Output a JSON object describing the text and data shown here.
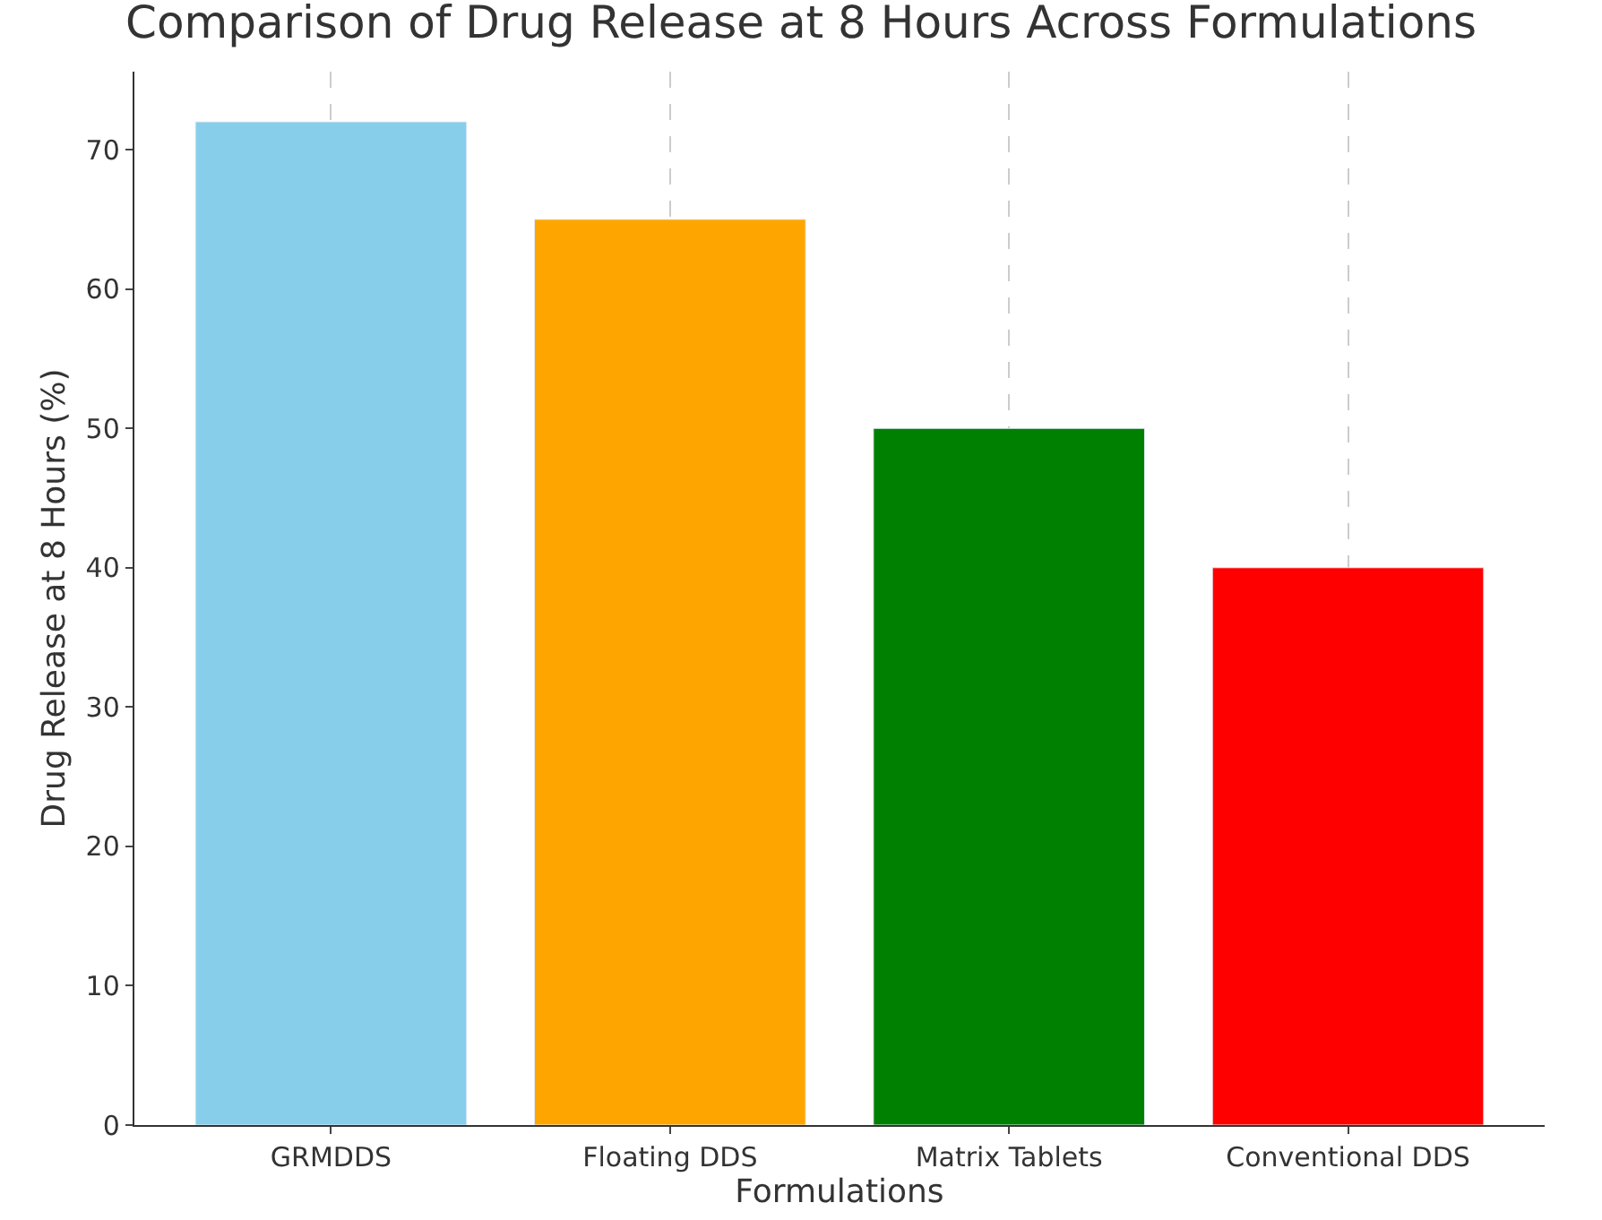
{
  "chart_data": {
    "type": "bar",
    "title": "Comparison of Drug Release at 8 Hours Across Formulations",
    "xlabel": "Formulations",
    "ylabel": "Drug Release at 8 Hours (%)",
    "categories": [
      "GRMDDS",
      "Floating DDS",
      "Matrix Tablets",
      "Conventional DDS"
    ],
    "values": [
      72,
      65,
      50,
      40
    ],
    "colors": [
      "#87ceeb",
      "#ffa500",
      "#008000",
      "#ff0000"
    ],
    "ylim": [
      0,
      75.6
    ],
    "yticks": [
      0,
      10,
      20,
      30,
      40,
      50,
      60,
      70
    ],
    "grid": "x"
  }
}
